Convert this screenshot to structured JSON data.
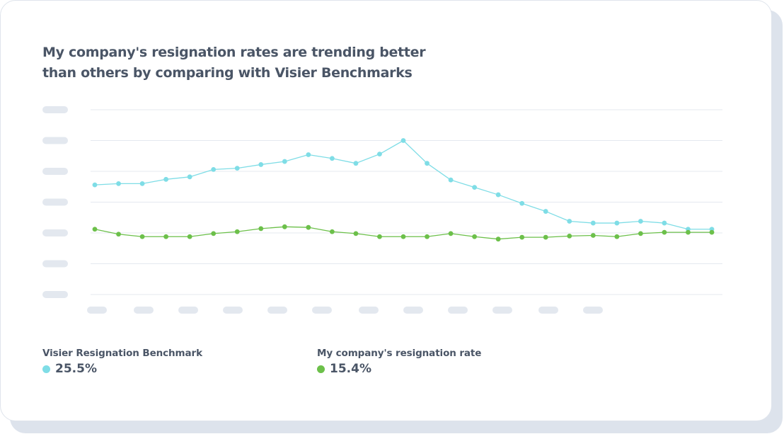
{
  "card": {
    "title": "My company's resignation rates are trending better than others by comparing with Visier Benchmarks"
  },
  "colors": {
    "benchmark": "#7fdde6",
    "company": "#6cc04a",
    "gridline": "#e4e8ef",
    "placeholder": "#e3e8ef",
    "text": "#4a5566"
  },
  "chart_data": {
    "type": "line",
    "title": "My company's resignation rates are trending better than others by comparing with Visier Benchmarks",
    "xlabel": "",
    "ylabel": "",
    "tick_labels_visible": false,
    "y_gridlines": 7,
    "x_tick_placeholders": 12,
    "grid": true,
    "ylim": [
      0,
      30
    ],
    "x": [
      1,
      2,
      3,
      4,
      5,
      6,
      7,
      8,
      9,
      10,
      11,
      12,
      13,
      14,
      15,
      16,
      17,
      18,
      19,
      20,
      21,
      22,
      23,
      24,
      25,
      26,
      27
    ],
    "series": [
      {
        "name": "Visier Resignation Benchmark",
        "color": "#7fdde6",
        "values": [
          17.8,
          18.0,
          18.0,
          18.7,
          19.1,
          20.3,
          20.5,
          21.1,
          21.6,
          22.7,
          22.1,
          21.3,
          22.8,
          25.0,
          21.3,
          18.6,
          17.4,
          16.2,
          14.8,
          13.5,
          11.9,
          11.6,
          11.6,
          11.9,
          11.6,
          10.6,
          10.6
        ],
        "display_value": "25.5%"
      },
      {
        "name": "My company's resignation rate",
        "color": "#6cc04a",
        "values": [
          10.6,
          9.8,
          9.4,
          9.4,
          9.4,
          9.9,
          10.2,
          10.7,
          11.0,
          10.9,
          10.2,
          9.9,
          9.4,
          9.4,
          9.4,
          9.9,
          9.4,
          9.0,
          9.3,
          9.3,
          9.5,
          9.6,
          9.4,
          9.9,
          10.1,
          10.1,
          10.1
        ],
        "display_value": "15.4%"
      }
    ]
  }
}
